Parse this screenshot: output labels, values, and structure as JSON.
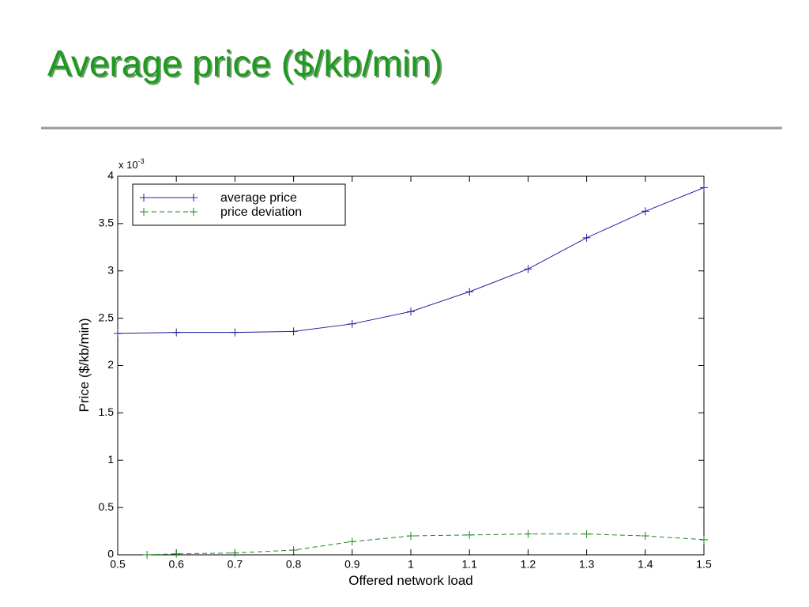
{
  "chart_data": {
    "type": "line",
    "title": "Average price ($/kb/min)",
    "xlabel": "Offered network load",
    "ylabel": "Price ($/kb/min)",
    "y_scale_label": {
      "base": "x 10",
      "exponent": "-3"
    },
    "xlim": [
      0.5,
      1.5
    ],
    "xticks": [
      0.5,
      0.6,
      0.7,
      0.8,
      0.9,
      1,
      1.1,
      1.2,
      1.3,
      1.4,
      1.5
    ],
    "ylim": [
      0,
      4
    ],
    "yticks": [
      0,
      0.5,
      1,
      1.5,
      2,
      2.5,
      3,
      3.5,
      4
    ],
    "grid": false,
    "legend": "upper-left",
    "series": [
      {
        "name": "average price",
        "color": "#2020a0",
        "dash": "solid",
        "x": [
          0.5,
          0.6,
          0.7,
          0.8,
          0.9,
          1,
          1.1,
          1.2,
          1.3,
          1.4,
          1.5
        ],
        "values": [
          2.34,
          2.35,
          2.35,
          2.36,
          2.44,
          2.57,
          2.78,
          3.02,
          3.35,
          3.63,
          3.88
        ]
      },
      {
        "name": "price deviation",
        "color": "#1a8a1a",
        "dash": "dashed",
        "x": [
          0.55,
          0.6,
          0.7,
          0.8,
          0.9,
          1,
          1.1,
          1.2,
          1.3,
          1.4,
          1.5
        ],
        "values": [
          0,
          0.01,
          0.02,
          0.05,
          0.14,
          0.2,
          0.21,
          0.22,
          0.22,
          0.2,
          0.16
        ]
      }
    ]
  }
}
